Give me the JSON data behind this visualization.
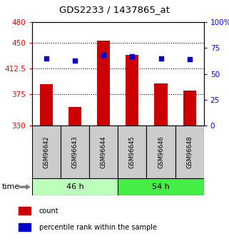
{
  "title": "GDS2233 / 1437865_at",
  "samples": [
    "GSM96642",
    "GSM96643",
    "GSM96644",
    "GSM96645",
    "GSM96646",
    "GSM96648"
  ],
  "count_values": [
    390,
    357,
    453,
    432,
    391,
    381
  ],
  "percentile_values": [
    65,
    63,
    68,
    67,
    65,
    64
  ],
  "ylim_left": [
    330,
    480
  ],
  "ylim_right": [
    0,
    100
  ],
  "yticks_left": [
    330,
    375,
    412.5,
    450,
    480
  ],
  "yticks_right": [
    0,
    25,
    50,
    75,
    100
  ],
  "groups": [
    {
      "label": "46 h",
      "indices": [
        0,
        1,
        2
      ],
      "color": "#bbffbb"
    },
    {
      "label": "54 h",
      "indices": [
        3,
        4,
        5
      ],
      "color": "#44ee44"
    }
  ],
  "bar_color": "#cc0000",
  "dot_color": "#0000cc",
  "bar_bottom": 330,
  "sample_box_color": "#cccccc",
  "bar_width": 0.45,
  "legend_items": [
    {
      "label": "count",
      "color": "#cc0000"
    },
    {
      "label": "percentile rank within the sample",
      "color": "#0000cc"
    }
  ]
}
